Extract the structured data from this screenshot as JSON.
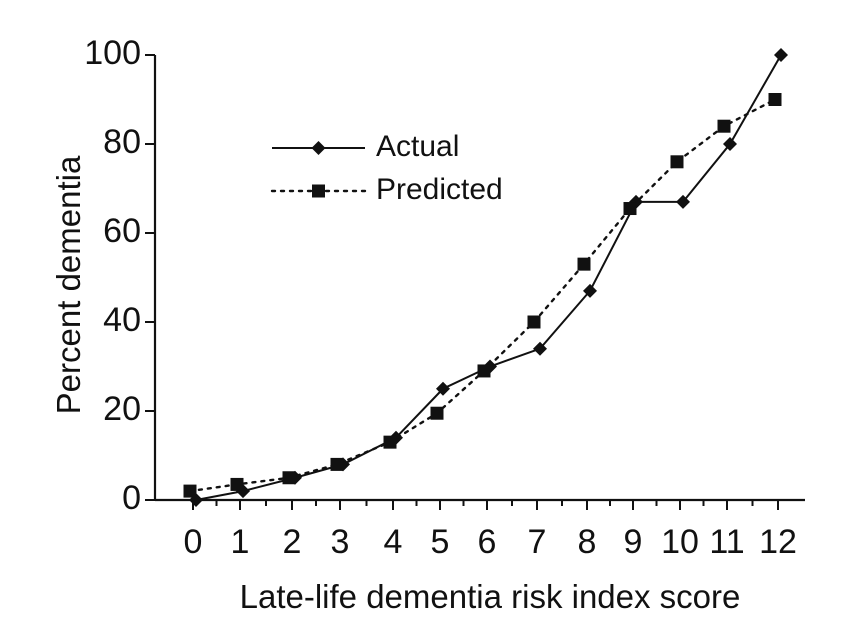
{
  "chart_data": {
    "type": "line",
    "xlabel": "Late-life dementia risk index score",
    "ylabel": "Percent dementia",
    "ylim": [
      0,
      100
    ],
    "yticks": [
      0,
      20,
      40,
      60,
      80,
      100
    ],
    "categories": [
      "0",
      "1",
      "2",
      "3",
      "4",
      "5",
      "6",
      "7",
      "8",
      "9",
      "10",
      "11",
      "12"
    ],
    "legend_position": "upper-left",
    "grid": false,
    "series": [
      {
        "name": "Actual",
        "marker": "diamond",
        "line_style": "solid",
        "color": "#111111",
        "values": [
          0,
          2,
          5,
          8,
          14,
          25,
          30,
          34,
          47,
          67,
          67,
          80,
          100
        ]
      },
      {
        "name": "Predicted",
        "marker": "square",
        "line_style": "dotted",
        "color": "#111111",
        "values": [
          2,
          3.5,
          5,
          8,
          13,
          19.5,
          29,
          40,
          53,
          65.5,
          76,
          84,
          90
        ]
      }
    ]
  }
}
